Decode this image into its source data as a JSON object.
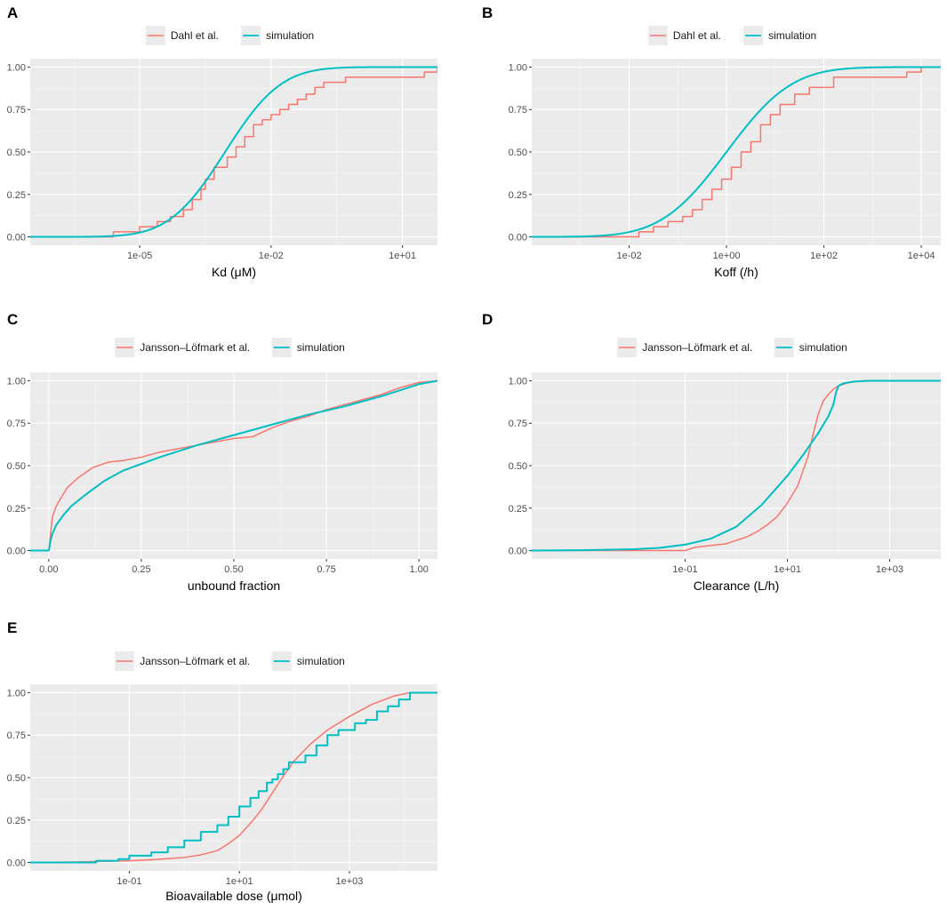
{
  "colors": {
    "reference": "#f8766d",
    "simulation": "#00bfc4",
    "panel_bg": "#ebebeb"
  },
  "chart_data": [
    {
      "panel": "A",
      "type": "line",
      "xscale": "log10",
      "xlabel": "Kd (μM)",
      "ylabel": "",
      "xlim": [
        -7.5,
        1.8
      ],
      "ylim": [
        0,
        1
      ],
      "x_ticks": [
        {
          "v": -5,
          "label": "1e-05"
        },
        {
          "v": -2,
          "label": "1e-02"
        },
        {
          "v": 1,
          "label": "1e+01"
        }
      ],
      "y_ticks": [
        {
          "v": 0,
          "label": "0.00"
        },
        {
          "v": 0.25,
          "label": "0.25"
        },
        {
          "v": 0.5,
          "label": "0.50"
        },
        {
          "v": 0.75,
          "label": "0.75"
        },
        {
          "v": 1,
          "label": "1.00"
        }
      ],
      "legend": [
        "Dahl et al.",
        "simulation"
      ],
      "series": [
        {
          "name": "Dahl et al.",
          "style": "step",
          "color": "#f8766d",
          "x": [
            -7.5,
            -5.6,
            -5.0,
            -4.6,
            -4.3,
            -4.0,
            -3.8,
            -3.6,
            -3.5,
            -3.3,
            -3.0,
            -2.8,
            -2.6,
            -2.4,
            -2.2,
            -2.0,
            -1.8,
            -1.6,
            -1.4,
            -1.2,
            -1.0,
            -0.8,
            -0.6,
            -0.3,
            -0.1,
            1.5,
            1.8
          ],
          "y": [
            0.0,
            0.03,
            0.06,
            0.09,
            0.12,
            0.16,
            0.22,
            0.28,
            0.34,
            0.41,
            0.47,
            0.53,
            0.59,
            0.66,
            0.69,
            0.72,
            0.75,
            0.78,
            0.81,
            0.84,
            0.88,
            0.91,
            0.91,
            0.94,
            0.94,
            0.97,
            1.0
          ]
        },
        {
          "name": "simulation",
          "style": "cdf",
          "color": "#00bfc4",
          "mu": -3.05,
          "sigma": 1.0
        }
      ]
    },
    {
      "panel": "B",
      "type": "line",
      "xscale": "log10",
      "xlabel": "Koff (/h)",
      "ylabel": "",
      "xlim": [
        -4,
        4.4
      ],
      "ylim": [
        0,
        1
      ],
      "x_ticks": [
        {
          "v": -2,
          "label": "1e-02"
        },
        {
          "v": 0,
          "label": "1e+00"
        },
        {
          "v": 2,
          "label": "1e+02"
        },
        {
          "v": 4,
          "label": "1e+04"
        }
      ],
      "y_ticks": [
        {
          "v": 0,
          "label": "0.00"
        },
        {
          "v": 0.25,
          "label": "0.25"
        },
        {
          "v": 0.5,
          "label": "0.50"
        },
        {
          "v": 0.75,
          "label": "0.75"
        },
        {
          "v": 1,
          "label": "1.00"
        }
      ],
      "legend": [
        "Dahl et al.",
        "simulation"
      ],
      "series": [
        {
          "name": "Dahl et al.",
          "style": "step",
          "color": "#f8766d",
          "x": [
            -4,
            -1.8,
            -1.5,
            -1.2,
            -0.9,
            -0.7,
            -0.5,
            -0.3,
            -0.1,
            0.1,
            0.3,
            0.5,
            0.7,
            0.9,
            1.1,
            1.4,
            1.7,
            2.2,
            3.7,
            4.0,
            4.4
          ],
          "y": [
            0.0,
            0.03,
            0.06,
            0.09,
            0.12,
            0.16,
            0.22,
            0.28,
            0.34,
            0.41,
            0.5,
            0.56,
            0.66,
            0.72,
            0.78,
            0.84,
            0.88,
            0.94,
            0.97,
            1.0,
            1.0
          ]
        },
        {
          "name": "simulation",
          "style": "cdf",
          "color": "#00bfc4",
          "mu": 0.0,
          "sigma": 1.05
        }
      ]
    },
    {
      "panel": "C",
      "type": "line",
      "xscale": "linear",
      "xlabel": "unbound fraction",
      "ylabel": "",
      "xlim": [
        -0.05,
        1.05
      ],
      "ylim": [
        0,
        1
      ],
      "x_ticks": [
        {
          "v": 0,
          "label": "0.00"
        },
        {
          "v": 0.25,
          "label": "0.25"
        },
        {
          "v": 0.5,
          "label": "0.50"
        },
        {
          "v": 0.75,
          "label": "0.75"
        },
        {
          "v": 1,
          "label": "1.00"
        }
      ],
      "y_ticks": [
        {
          "v": 0,
          "label": "0.00"
        },
        {
          "v": 0.25,
          "label": "0.25"
        },
        {
          "v": 0.5,
          "label": "0.50"
        },
        {
          "v": 0.75,
          "label": "0.75"
        },
        {
          "v": 1,
          "label": "1.00"
        }
      ],
      "legend": [
        "Jansson–Löfmark et al.",
        "simulation"
      ],
      "series": [
        {
          "name": "Jansson–Löfmark et al.",
          "style": "line",
          "color": "#f8766d",
          "x": [
            -0.05,
            0.0,
            0.005,
            0.01,
            0.02,
            0.03,
            0.05,
            0.08,
            0.12,
            0.16,
            0.2,
            0.25,
            0.3,
            0.35,
            0.4,
            0.45,
            0.5,
            0.55,
            0.6,
            0.65,
            0.7,
            0.75,
            0.8,
            0.85,
            0.9,
            0.95,
            1.0,
            1.05
          ],
          "y": [
            0.0,
            0.0,
            0.1,
            0.2,
            0.26,
            0.3,
            0.37,
            0.43,
            0.49,
            0.52,
            0.53,
            0.55,
            0.58,
            0.6,
            0.62,
            0.64,
            0.66,
            0.67,
            0.72,
            0.76,
            0.79,
            0.83,
            0.86,
            0.89,
            0.92,
            0.96,
            0.99,
            1.0
          ]
        },
        {
          "name": "simulation",
          "style": "line",
          "color": "#00bfc4",
          "x": [
            -0.05,
            0.0,
            0.005,
            0.01,
            0.02,
            0.04,
            0.06,
            0.1,
            0.15,
            0.2,
            0.25,
            0.3,
            0.4,
            0.5,
            0.6,
            0.7,
            0.8,
            0.9,
            1.0,
            1.05
          ],
          "y": [
            0.0,
            0.0,
            0.06,
            0.1,
            0.15,
            0.21,
            0.26,
            0.33,
            0.41,
            0.47,
            0.51,
            0.55,
            0.62,
            0.68,
            0.74,
            0.8,
            0.85,
            0.91,
            0.98,
            1.0
          ]
        }
      ]
    },
    {
      "panel": "D",
      "type": "line",
      "xscale": "log10",
      "xlabel": "Clearance (L/h)",
      "ylabel": "",
      "xlim": [
        -4,
        4
      ],
      "ylim": [
        0,
        1
      ],
      "x_ticks": [
        {
          "v": -1,
          "label": "1e-01"
        },
        {
          "v": 1,
          "label": "1e+01"
        },
        {
          "v": 3,
          "label": "1e+03"
        }
      ],
      "y_ticks": [
        {
          "v": 0,
          "label": "0.00"
        },
        {
          "v": 0.25,
          "label": "0.25"
        },
        {
          "v": 0.5,
          "label": "0.50"
        },
        {
          "v": 0.75,
          "label": "0.75"
        },
        {
          "v": 1,
          "label": "1.00"
        }
      ],
      "legend": [
        "Jansson–Löfmark et al.",
        "simulation"
      ],
      "series": [
        {
          "name": "Jansson–Löfmark et al.",
          "style": "line",
          "color": "#f8766d",
          "x": [
            -4,
            -1.0,
            -0.8,
            -0.5,
            -0.2,
            0.0,
            0.2,
            0.4,
            0.6,
            0.8,
            1.0,
            1.2,
            1.4,
            1.5,
            1.6,
            1.7,
            1.8,
            1.9,
            2.0,
            2.2,
            2.5,
            3.0,
            4.0
          ],
          "y": [
            0.0,
            0.0,
            0.02,
            0.03,
            0.04,
            0.06,
            0.08,
            0.11,
            0.15,
            0.2,
            0.28,
            0.38,
            0.55,
            0.68,
            0.8,
            0.88,
            0.92,
            0.95,
            0.97,
            0.99,
            1.0,
            1.0,
            1.0
          ]
        },
        {
          "name": "simulation",
          "style": "line",
          "color": "#00bfc4",
          "x": [
            -4,
            -3,
            -2,
            -1.5,
            -1.0,
            -0.5,
            0.0,
            0.5,
            1.0,
            1.3,
            1.6,
            1.8,
            1.9,
            1.95,
            2.0,
            2.1,
            2.3,
            2.6,
            3.0,
            4.0
          ],
          "y": [
            0.0,
            0.002,
            0.008,
            0.016,
            0.035,
            0.07,
            0.14,
            0.27,
            0.44,
            0.56,
            0.69,
            0.79,
            0.86,
            0.93,
            0.97,
            0.985,
            0.995,
            1.0,
            1.0,
            1.0
          ]
        }
      ]
    },
    {
      "panel": "E",
      "type": "line",
      "xscale": "log10",
      "xlabel": "Bioavailable dose (μmol)",
      "ylabel": "",
      "xlim": [
        -2.8,
        4.6
      ],
      "ylim": [
        0,
        1
      ],
      "x_ticks": [
        {
          "v": -1,
          "label": "1e-01"
        },
        {
          "v": 1,
          "label": "1e+01"
        },
        {
          "v": 3,
          "label": "1e+03"
        }
      ],
      "y_ticks": [
        {
          "v": 0,
          "label": "0.00"
        },
        {
          "v": 0.25,
          "label": "0.25"
        },
        {
          "v": 0.5,
          "label": "0.50"
        },
        {
          "v": 0.75,
          "label": "0.75"
        },
        {
          "v": 1,
          "label": "1.00"
        }
      ],
      "legend": [
        "Jansson–Löfmark et al.",
        "simulation"
      ],
      "series": [
        {
          "name": "Jansson–Löfmark et al.",
          "style": "line",
          "color": "#f8766d",
          "x": [
            -2.8,
            -2.0,
            -1.0,
            -0.5,
            0.0,
            0.3,
            0.6,
            0.8,
            1.0,
            1.2,
            1.4,
            1.6,
            1.8,
            2.0,
            2.3,
            2.6,
            3.0,
            3.4,
            3.8,
            4.1,
            4.6
          ],
          "y": [
            0.0,
            0.003,
            0.01,
            0.018,
            0.03,
            0.045,
            0.07,
            0.11,
            0.16,
            0.23,
            0.31,
            0.41,
            0.51,
            0.6,
            0.7,
            0.78,
            0.86,
            0.93,
            0.98,
            1.0,
            1.0
          ]
        },
        {
          "name": "simulation",
          "style": "step",
          "color": "#00bfc4",
          "x": [
            -2.8,
            -1.6,
            -1.2,
            -1.0,
            -0.6,
            -0.3,
            0.0,
            0.3,
            0.6,
            0.8,
            1.0,
            1.2,
            1.35,
            1.5,
            1.6,
            1.7,
            1.8,
            1.9,
            2.0,
            2.2,
            2.4,
            2.6,
            2.8,
            3.1,
            3.3,
            3.5,
            3.7,
            3.9,
            4.1,
            4.6
          ],
          "y": [
            0.0,
            0.01,
            0.02,
            0.04,
            0.06,
            0.09,
            0.13,
            0.18,
            0.22,
            0.27,
            0.33,
            0.38,
            0.42,
            0.47,
            0.49,
            0.52,
            0.55,
            0.59,
            0.59,
            0.63,
            0.69,
            0.75,
            0.78,
            0.82,
            0.84,
            0.89,
            0.92,
            0.96,
            1.0,
            1.0
          ]
        }
      ]
    }
  ]
}
